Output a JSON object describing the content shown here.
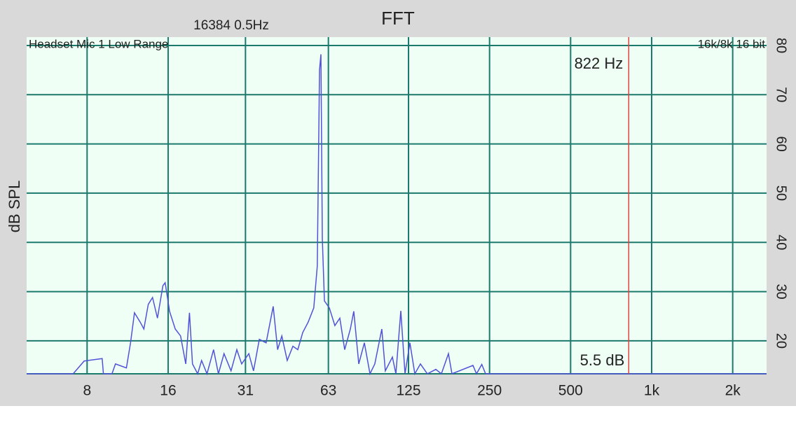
{
  "chart_data": {
    "type": "line",
    "title": "FFT",
    "subtitle": "16384  0.5Hz",
    "source_label": "Headset Mic 1 Low Range",
    "format_label": "16k/8k 16 bit",
    "ylabel": "dB SPL",
    "log_x": true,
    "grid": true,
    "xlim": [
      4.77,
      2672
    ],
    "ylim": [
      13.3,
      81.7
    ],
    "xticks": [
      8,
      16,
      31,
      63,
      125,
      250,
      500,
      {
        "value": 1000,
        "label": "1k"
      },
      {
        "value": 2000,
        "label": "2k"
      }
    ],
    "yticks": [
      20,
      30,
      40,
      50,
      60,
      70,
      80
    ],
    "cursor": {
      "frequency": 822,
      "label": "822 Hz",
      "level_label": "5.5 dB",
      "color": "#e04040"
    },
    "series": [
      {
        "color": "#5252d8",
        "x": [
          4.77,
          7.1,
          7.8,
          9.1,
          9.2,
          9.9,
          10.2,
          11.2,
          11.6,
          12.0,
          12.6,
          13.0,
          13.5,
          14.0,
          14.6,
          15.3,
          15.6,
          16.2,
          17.0,
          17.8,
          18.6,
          19.2,
          19.7,
          20.6,
          21.3,
          22.3,
          23.6,
          24.6,
          25.8,
          27.4,
          28.8,
          30.0,
          31.9,
          33.2,
          34.9,
          37.0,
          39.3,
          40.8,
          42.3,
          44.3,
          46.5,
          48.5,
          50.6,
          53.0,
          55.6,
          57.3,
          58.4,
          59.1,
          59.8,
          60.9,
          63.5,
          66.6,
          69.5,
          72.4,
          76.0,
          78.3,
          81.7,
          85.7,
          89.9,
          93.7,
          99.5,
          102.5,
          108.9,
          112.2,
          117.0,
          121.3,
          126.5,
          131.9,
          138.4,
          146.9,
          157.9,
          165.6,
          175.9,
          181.3,
          217,
          223.5,
          234,
          241.6,
          2672
        ],
        "values": [
          13.3,
          13.3,
          15.9,
          16.4,
          13.3,
          13.3,
          15.3,
          14.5,
          19.6,
          25.7,
          23.8,
          22.4,
          27.4,
          28.8,
          24.6,
          31.2,
          31.8,
          26.0,
          22.4,
          21.0,
          15.3,
          25.7,
          15.3,
          13.3,
          16.0,
          13.3,
          18.2,
          13.3,
          17.4,
          13.9,
          18.2,
          15.3,
          17.4,
          13.9,
          20.3,
          19.6,
          27.0,
          18.2,
          21.0,
          16.0,
          18.9,
          18.2,
          21.7,
          23.8,
          26.7,
          35.2,
          75.0,
          78.2,
          40.8,
          28.1,
          26.7,
          23.1,
          24.6,
          18.2,
          22.4,
          26.0,
          15.3,
          19.6,
          13.3,
          15.3,
          22.4,
          13.9,
          16.7,
          13.3,
          26.1,
          13.3,
          19.6,
          13.3,
          15.3,
          13.3,
          14.2,
          13.3,
          17.4,
          13.3,
          15.0,
          13.3,
          15.2,
          13.3,
          13.3
        ]
      }
    ]
  }
}
